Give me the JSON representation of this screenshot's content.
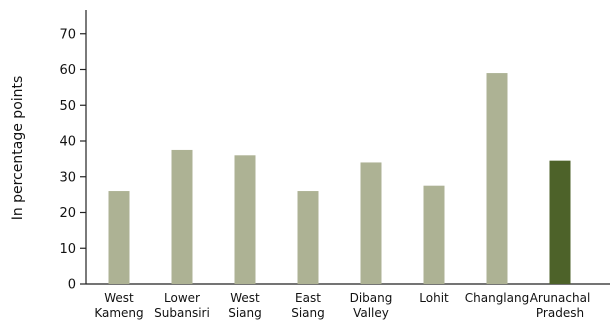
{
  "chart_data": {
    "type": "bar",
    "title": "",
    "xlabel": "",
    "ylabel": "In percentage points",
    "ylim": [
      0,
      75
    ],
    "yticks": [
      0,
      10,
      20,
      30,
      40,
      50,
      60,
      70
    ],
    "grid": false,
    "categories": [
      [
        "West",
        "Kameng"
      ],
      [
        "Lower",
        "Subansiri"
      ],
      [
        "West",
        "Siang"
      ],
      [
        "East",
        "Siang"
      ],
      [
        "Dibang",
        "Valley"
      ],
      [
        "Lohit"
      ],
      [
        "Changlang"
      ],
      [
        "Arunachal",
        "Pradesh"
      ]
    ],
    "values": [
      26,
      37.5,
      36,
      26,
      34,
      27.5,
      59,
      34.5
    ],
    "colors": {
      "district": "#adb294",
      "state": "#4d6229",
      "axis": "#222222"
    },
    "highlight_index": 7
  }
}
